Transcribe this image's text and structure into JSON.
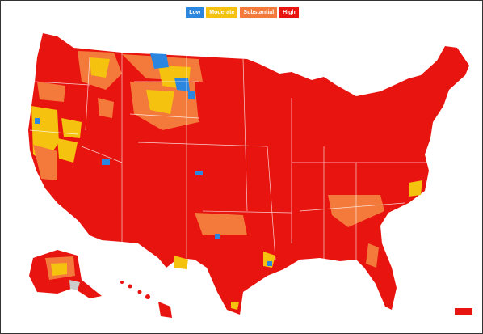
{
  "legend": {
    "items": [
      {
        "label": "Low",
        "color": "#2a86df"
      },
      {
        "label": "Moderate",
        "color": "#f4c20f"
      },
      {
        "label": "Substantial",
        "color": "#f47a3c"
      },
      {
        "label": "High",
        "color": "#e8140f"
      }
    ]
  }
}
